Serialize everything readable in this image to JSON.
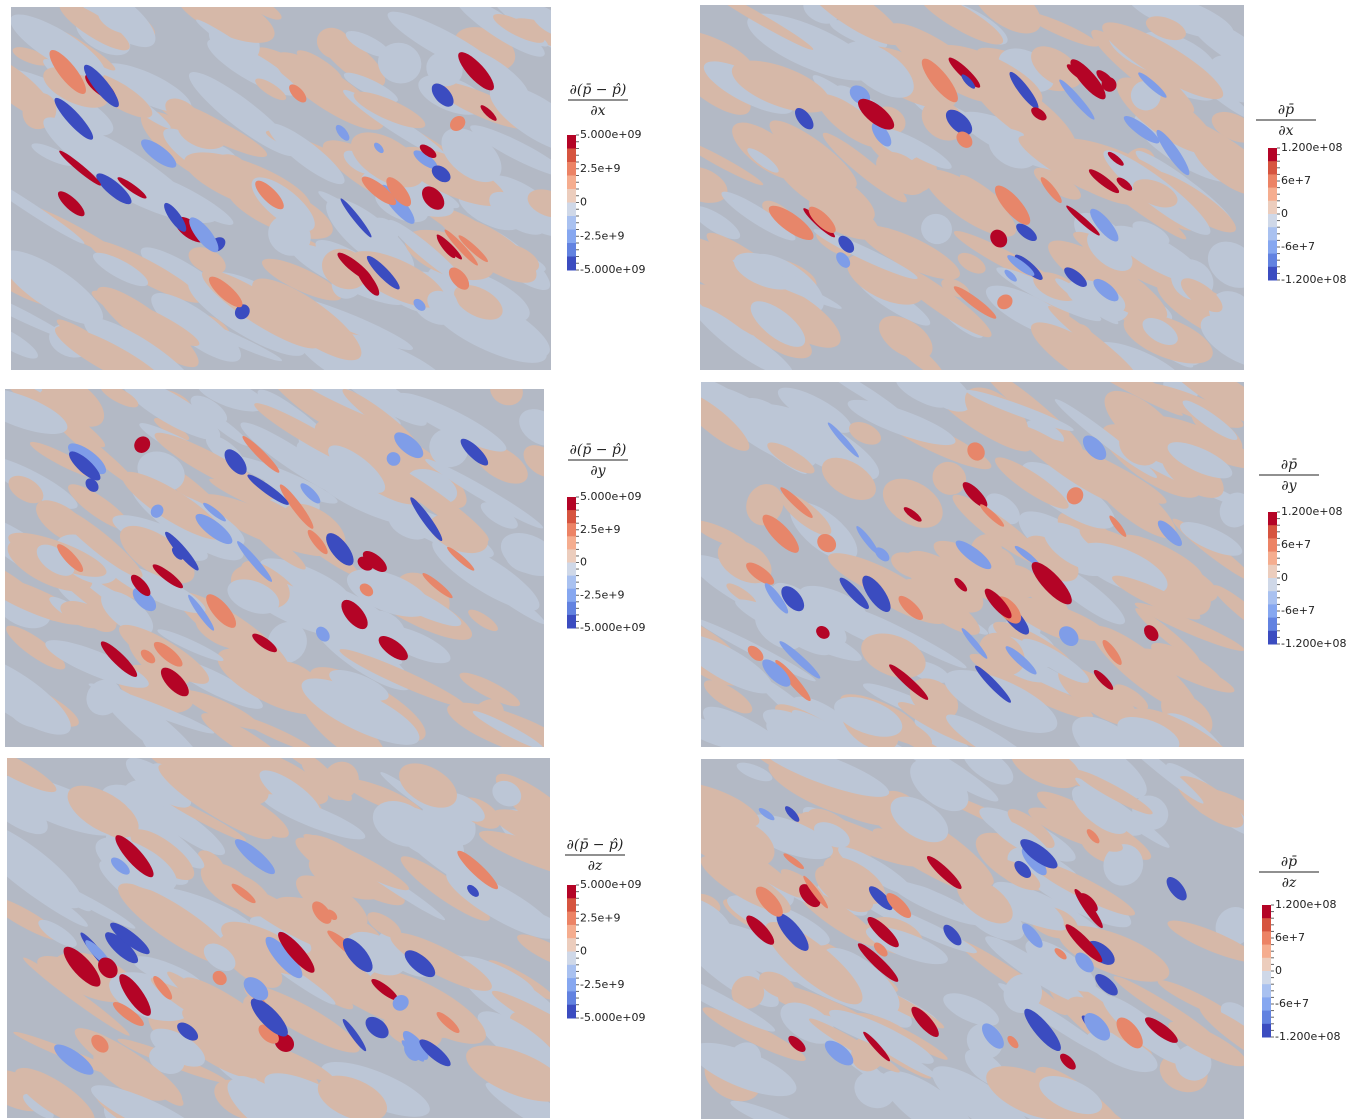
{
  "panels": [
    {
      "colorbar": {
        "numerator": "∂(p̄ − p̂)",
        "denominator": "∂x",
        "ticks": [
          "5.000e+09",
          "2.5e+9",
          "0",
          "-2.5e+9",
          "-5.000e+09"
        ]
      }
    },
    {
      "colorbar": {
        "numerator": "∂p̄",
        "denominator": "∂x",
        "ticks": [
          "1.200e+08",
          "6e+7",
          "0",
          "-6e+7",
          "-1.200e+08"
        ]
      }
    },
    {
      "colorbar": {
        "numerator": "∂(p̄ − p̂)",
        "denominator": "∂y",
        "ticks": [
          "5.000e+09",
          "2.5e+9",
          "0",
          "-2.5e+9",
          "-5.000e+09"
        ]
      }
    },
    {
      "colorbar": {
        "numerator": "∂p̄",
        "denominator": "∂y",
        "ticks": [
          "1.200e+08",
          "6e+7",
          "0",
          "-6e+7",
          "-1.200e+08"
        ]
      }
    },
    {
      "colorbar": {
        "numerator": "∂(p̄ − p̂)",
        "denominator": "∂z",
        "ticks": [
          "5.000e+09",
          "2.5e+9",
          "0",
          "-2.5e+9",
          "-5.000e+09"
        ]
      }
    },
    {
      "colorbar": {
        "numerator": "∂p̄",
        "denominator": "∂z",
        "ticks": [
          "1.200e+08",
          "6e+7",
          "0",
          "-6e+7",
          "-1.200e+08"
        ]
      }
    }
  ]
}
